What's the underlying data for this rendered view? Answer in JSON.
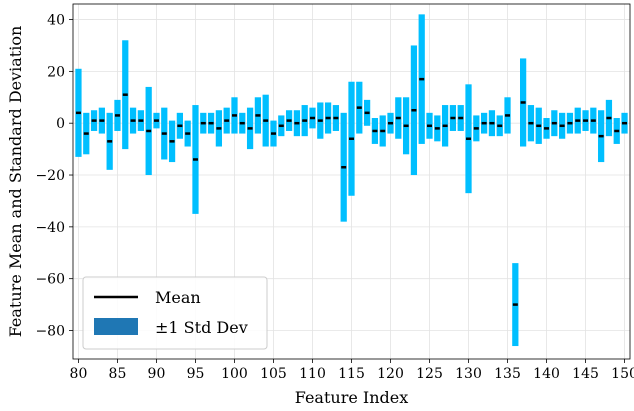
{
  "chart_data": {
    "type": "bar",
    "xlabel": "Feature Index",
    "ylabel": "Feature Mean and Standard Deviation",
    "xlim": [
      79.3,
      150.7
    ],
    "ylim": [
      -91,
      46
    ],
    "xticks": [
      80,
      85,
      90,
      95,
      100,
      105,
      110,
      115,
      120,
      125,
      130,
      135,
      140,
      145,
      150
    ],
    "yticks": [
      -80,
      -60,
      -40,
      -20,
      0,
      20,
      40
    ],
    "grid": true,
    "legend": {
      "position": "lower-left",
      "entries": [
        {
          "label": "Mean",
          "kind": "line",
          "color": "#000000"
        },
        {
          "label": "±1 Std Dev",
          "kind": "patch",
          "color": "#1f77b4"
        }
      ]
    },
    "bar_color": "#00bfff",
    "mean_color": "#000000",
    "x": [
      80,
      81,
      82,
      83,
      84,
      85,
      86,
      87,
      88,
      89,
      90,
      91,
      92,
      93,
      94,
      95,
      96,
      97,
      98,
      99,
      100,
      101,
      102,
      103,
      104,
      105,
      106,
      107,
      108,
      109,
      110,
      111,
      112,
      113,
      114,
      115,
      116,
      117,
      118,
      119,
      120,
      121,
      122,
      123,
      124,
      125,
      126,
      127,
      128,
      129,
      130,
      131,
      132,
      133,
      134,
      135,
      136,
      137,
      138,
      139,
      140,
      141,
      142,
      143,
      144,
      145,
      146,
      147,
      148,
      149,
      150
    ],
    "mean": [
      4,
      -4,
      1,
      1,
      -7,
      3,
      11,
      1,
      1,
      -3,
      1,
      -4,
      -7,
      -1,
      -4,
      -14,
      0,
      0,
      -2,
      1,
      3,
      0,
      -2,
      3,
      1,
      -4,
      -1,
      1,
      0,
      1,
      2,
      1,
      2,
      2,
      -17,
      -6,
      6,
      4,
      -3,
      -3,
      0,
      2,
      -1,
      5,
      17,
      -1,
      -2,
      -1,
      2,
      2,
      -6,
      -2,
      0,
      0,
      -1,
      3,
      -70,
      8,
      0,
      -1,
      -2,
      0,
      -1,
      0,
      1,
      1,
      1,
      -5,
      2,
      -3,
      0
    ],
    "std": [
      17,
      8,
      4,
      5,
      11,
      6,
      21,
      5,
      4,
      17,
      3,
      10,
      8,
      5,
      5,
      21,
      4,
      4,
      7,
      5,
      7,
      4,
      8,
      7,
      10,
      5,
      4,
      4,
      5,
      6,
      4,
      7,
      6,
      5,
      21,
      22,
      10,
      5,
      5,
      6,
      4,
      8,
      11,
      25,
      25,
      5,
      5,
      8,
      5,
      5,
      21,
      5,
      4,
      5,
      4,
      7,
      16,
      17,
      7,
      7,
      4,
      5,
      5,
      4,
      5,
      4,
      5,
      10,
      7,
      5,
      4
    ]
  }
}
